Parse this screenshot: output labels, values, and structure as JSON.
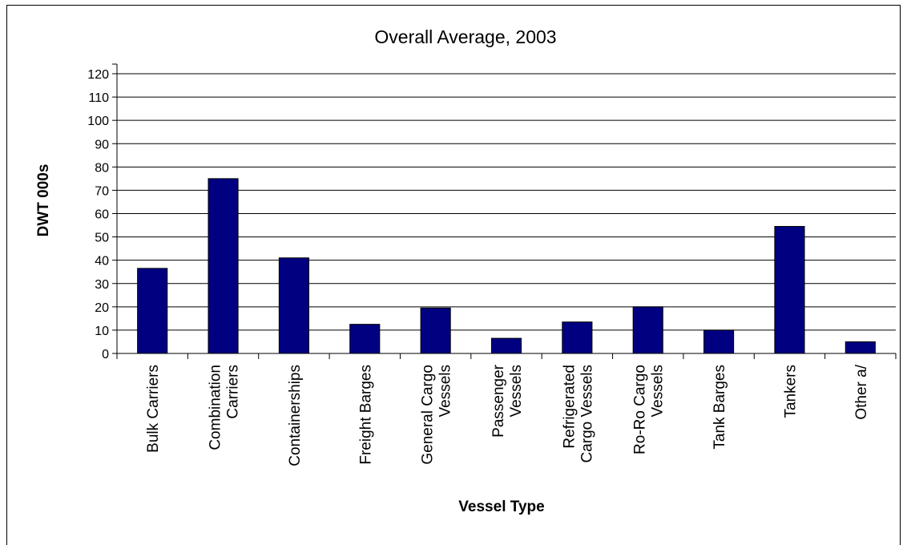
{
  "chart_data": {
    "type": "bar",
    "title": "Overall Average, 2003",
    "xlabel": "Vessel Type",
    "ylabel": "DWT 000s",
    "ylim": [
      0,
      120
    ],
    "yticks": [
      0,
      10,
      20,
      30,
      40,
      50,
      60,
      70,
      80,
      90,
      100,
      110,
      120
    ],
    "grid": true,
    "categories": [
      [
        "Bulk Carriers"
      ],
      [
        "Combination",
        "Carriers"
      ],
      [
        "Containerships"
      ],
      [
        "Freight Barges"
      ],
      [
        "General Cargo",
        "Vessels"
      ],
      [
        "Passenger",
        "Vessels"
      ],
      [
        "Refrigerated",
        "Cargo Vessels"
      ],
      [
        "Ro-Ro Cargo",
        "Vessels"
      ],
      [
        "Tank Barges"
      ],
      [
        "Tankers"
      ],
      [
        "Other a/"
      ]
    ],
    "values": [
      36.5,
      75,
      41,
      12.5,
      19.5,
      6.5,
      13.5,
      20,
      10,
      54.5,
      5
    ],
    "bar_color": "#000080"
  }
}
